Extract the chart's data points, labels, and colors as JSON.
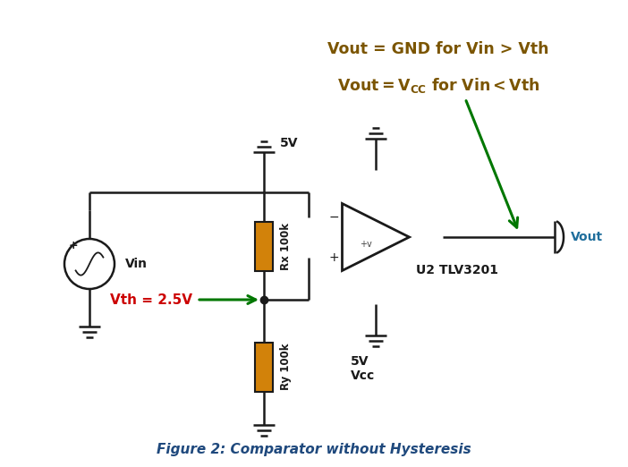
{
  "title": "Figure 2: Comparator without Hysteresis",
  "title_color": "#1F497D",
  "bg_color": "#ffffff",
  "annotation_line1": "Vout = GND for Vin > Vth",
  "annotation_line2_pre": "Vout = V",
  "annotation_line2_sub": "CC",
  "annotation_line2_post": " for Vin < Vth",
  "annotation_color": "#7B5500",
  "vth_label": "Vth = 2.5V",
  "vth_text_color": "#CC0000",
  "vth_outline_color": "#007700",
  "arrow_color": "#007700",
  "resistor_color": "#D2820A",
  "wire_color": "#1a1a1a",
  "vout_color": "#1F6E9C",
  "u2_label": "U2 TLV3201",
  "vcc_label": "5V",
  "vcc_bottom_label1": "5V",
  "vcc_bottom_label2": "Vcc",
  "rx_label": "Rx 100k",
  "ry_label": "Ry 100k",
  "vin_label": "Vin",
  "vout_label": "Vout",
  "comp_label_minus": "−",
  "comp_label_plus": "+",
  "comp_label_plusv": "+v"
}
